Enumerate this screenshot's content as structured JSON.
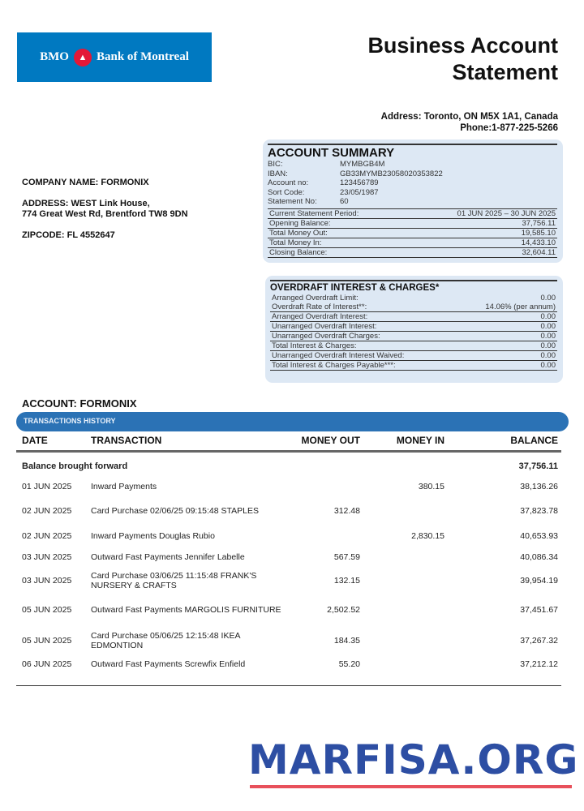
{
  "logo": {
    "left": "BMO",
    "right": "Bank of Montreal",
    "icon": "bmo-roundel-icon",
    "bg": "#0079c1"
  },
  "title": {
    "line1": "Business Account",
    "line2": "Statement"
  },
  "contact": {
    "address": "Address: Toronto, ON M5X 1A1, Canada",
    "phone": "Phone:1-877-225-5266"
  },
  "company": {
    "name": "COMPANY NAME: FORMONIX",
    "address1": "ADDRESS: WEST Link House,",
    "address2": "774 Great West Rd, Brentford TW8 9DN",
    "zip": "ZIPCODE: FL 4552647"
  },
  "summary": {
    "title": "ACCOUNT SUMMARY",
    "info": [
      {
        "label": "BIC:",
        "value": "MYMBGB4M"
      },
      {
        "label": "IBAN:",
        "value": "GB33MYMB23058020353822"
      },
      {
        "label": "Account no:",
        "value": "123456789"
      },
      {
        "label": "Sort Code:",
        "value": "23/05/1987"
      },
      {
        "label": "Statement No:",
        "value": "60"
      }
    ],
    "rows": [
      {
        "label": "Current Statement Period:",
        "value": "01 JUN 2025 – 30 JUN 2025"
      },
      {
        "label": "Opening Balance:",
        "value": "37,756.11"
      },
      {
        "label": "Total Money Out:",
        "value": "19,585.10"
      },
      {
        "label": "Total Money In:",
        "value": "14,433.10"
      },
      {
        "label": "Closing Balance:",
        "value": "32,604.11"
      }
    ]
  },
  "overdraft": {
    "title": "OVERDRAFT INTEREST & CHARGES*",
    "plain": [
      {
        "label": "Arranged Overdraft Limit:",
        "value": "0.00"
      },
      {
        "label": "Overdraft Rate of Interest**:",
        "value": "14.06% (per annum)"
      }
    ],
    "rows": [
      {
        "label": "Arranged Overdraft Interest:",
        "value": "0.00"
      },
      {
        "label": "Unarranged Overdraft Interest:",
        "value": "0.00"
      },
      {
        "label": "Unarranged Overdraft Charges:",
        "value": "0.00"
      },
      {
        "label": "Total Interest & Charges:",
        "value": "0.00"
      },
      {
        "label": "Unarranged Overdraft Interest Waived:",
        "value": "0.00"
      },
      {
        "label": "Total Interest & Charges Payable***:",
        "value": "0.00"
      }
    ]
  },
  "account": "ACCOUNT: FORMONIX",
  "history_label": "TRANSACTIONS HISTORY",
  "columns": {
    "date": "DATE",
    "transaction": "TRANSACTION",
    "out": "MONEY OUT",
    "in": "MONEY IN",
    "balance": "BALANCE"
  },
  "brought_forward": {
    "label": "Balance brought forward",
    "balance": "37,756.11"
  },
  "transactions": [
    {
      "date": "01 JUN 2025",
      "desc": "Inward Payments",
      "out": "",
      "in": "380.15",
      "balance": "38,136.26"
    },
    {
      "date": "02 JUN 2025",
      "desc": "Card Purchase 02/06/25 09:15:48 STAPLES",
      "out": "312.48",
      "in": "",
      "balance": "37,823.78"
    },
    {
      "date": "02 JUN 2025",
      "desc": "Inward Payments Douglas Rubio",
      "out": "",
      "in": "2,830.15",
      "balance": "40,653.93"
    },
    {
      "date": "03 JUN 2025",
      "desc": "Outward Fast Payments Jennifer Labelle",
      "out": "567.59",
      "in": "",
      "balance": "40,086.34"
    },
    {
      "date": "03 JUN 2025",
      "desc": "Card Purchase 03/06/25 11:15:48 FRANK'S NURSERY & CRAFTS",
      "out": "132.15",
      "in": "",
      "balance": "39,954.19"
    },
    {
      "date": "05 JUN 2025",
      "desc": "Outward Fast Payments MARGOLIS FURNITURE",
      "out": "2,502.52",
      "in": "",
      "balance": "37,451.67"
    },
    {
      "date": "05 JUN 2025",
      "desc": "Card Purchase 05/06/25 12:15:48 IKEA EDMONTION",
      "out": "184.35",
      "in": "",
      "balance": "37,267.32"
    },
    {
      "date": "06 JUN 2025",
      "desc": "Outward Fast Payments Screwfix Enfield",
      "out": "55.20",
      "in": "",
      "balance": "37,212.12"
    }
  ],
  "watermark": "MARFISA.ORG"
}
